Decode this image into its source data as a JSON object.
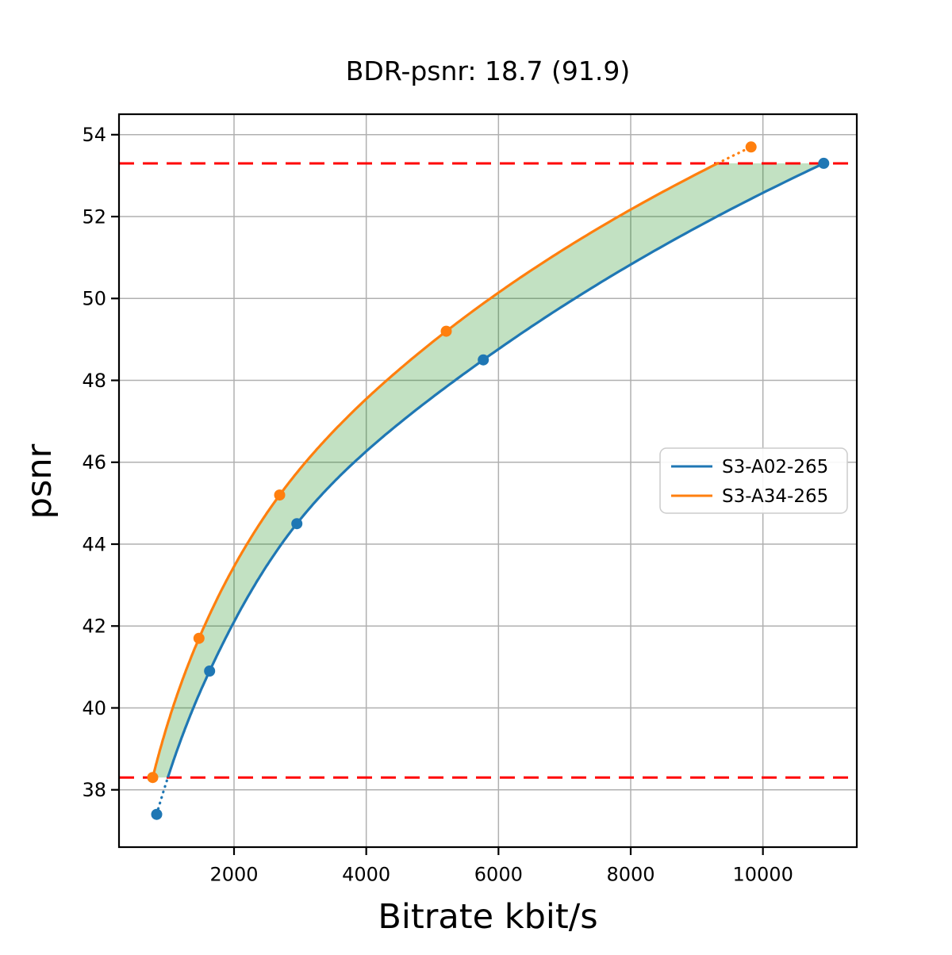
{
  "chart_data": {
    "type": "line",
    "title": "BDR-psnr: 18.7 (91.9)",
    "xlabel": "Bitrate kbit/s",
    "ylabel": "psnr",
    "xlim": [
      260,
      11420
    ],
    "ylim": [
      36.6,
      54.5
    ],
    "xticks": [
      2000,
      4000,
      6000,
      8000,
      10000
    ],
    "yticks": [
      38,
      40,
      42,
      44,
      46,
      48,
      50,
      52,
      54
    ],
    "grid": true,
    "interpolation": "pchip-on-log-bitrate",
    "series": [
      {
        "name": "S3-A02-265",
        "color": "#1f77b4",
        "x": [
          830,
          1630,
          2950,
          5770,
          10920
        ],
        "y": [
          37.4,
          40.9,
          44.5,
          48.5,
          53.3
        ]
      },
      {
        "name": "S3-A34-265",
        "color": "#ff7f0e",
        "x": [
          770,
          1470,
          2690,
          5210,
          9820
        ],
        "y": [
          38.3,
          41.7,
          45.2,
          49.2,
          53.7
        ]
      }
    ],
    "overlap_region": {
      "ymin": 38.3,
      "ymax": 53.3,
      "line_color": "#ff0000",
      "line_style": "dashed",
      "fill_color": "rgba(0,128,0,0.24)"
    },
    "legend": {
      "position": "right-center",
      "entries": [
        "S3-A02-265",
        "S3-A34-265"
      ]
    },
    "colors": {
      "background": "#ffffff",
      "grid": "#b0b0b0",
      "spine": "#000000",
      "text": "#000000"
    }
  }
}
